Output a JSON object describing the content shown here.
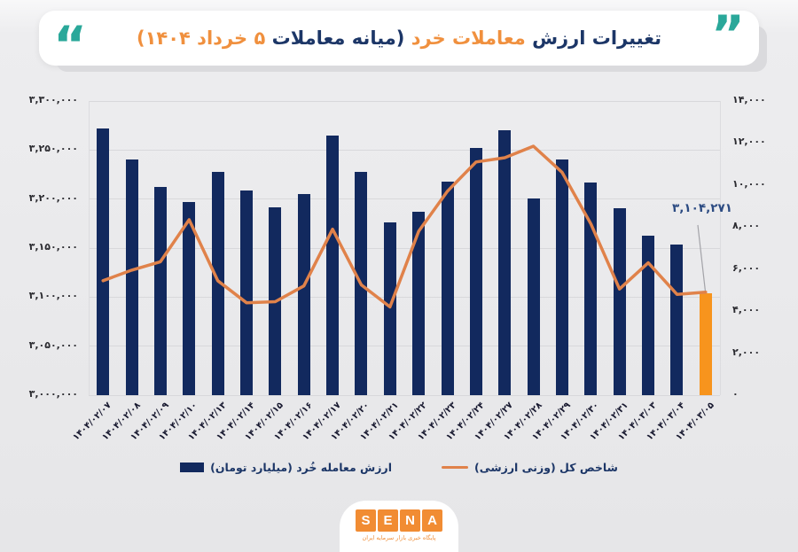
{
  "title": {
    "quote_left": "“",
    "quote_right": "”",
    "seg1": "تغییرات ارزش",
    "seg2": "معاملات خرد",
    "seg3": "(میانه معاملات",
    "seg4": "۵ خرداد ۱۴۰۴)"
  },
  "chart_data": {
    "type": "bar+line combo, dual axis",
    "categories": [
      "۱۴۰۴/۰۲/۰۷",
      "۱۴۰۴/۰۲/۰۸",
      "۱۴۰۴/۰۲/۰۹",
      "۱۴۰۴/۰۲/۱۰",
      "۱۴۰۴/۰۲/۱۳",
      "۱۴۰۴/۰۲/۱۴",
      "۱۴۰۴/۰۲/۱۵",
      "۱۴۰۴/۰۲/۱۶",
      "۱۴۰۴/۰۲/۱۷",
      "۱۴۰۴/۰۲/۲۰",
      "۱۴۰۴/۰۲/۲۱",
      "۱۴۰۴/۰۲/۲۲",
      "۱۴۰۴/۰۲/۲۳",
      "۱۴۰۴/۰۲/۲۴",
      "۱۴۰۴/۰۲/۲۷",
      "۱۴۰۴/۰۲/۲۸",
      "۱۴۰۴/۰۲/۲۹",
      "۱۴۰۴/۰۲/۳۰",
      "۱۴۰۴/۰۲/۳۱",
      "۱۴۰۴/۰۳/۰۳",
      "۱۴۰۴/۰۳/۰۴",
      "۱۴۰۴/۰۳/۰۵"
    ],
    "series": [
      {
        "name": "ارزش معامله خُرد (میلیارد تومان)",
        "type": "bar",
        "axis": "left",
        "color": "#12295e",
        "last_bar_color": "#f7941d",
        "values": [
          3272000,
          3240000,
          3212000,
          3197000,
          3228000,
          3209000,
          3192000,
          3205000,
          3265000,
          3228000,
          3176000,
          3187000,
          3218000,
          3252000,
          3270000,
          3201000,
          3240000,
          3217000,
          3191000,
          3163000,
          3154000,
          3104271
        ]
      },
      {
        "name": "شاخص کل (وزنی ارزشی)",
        "type": "line",
        "axis": "right",
        "color": "#e0824a",
        "values": [
          5450,
          5950,
          6350,
          8350,
          5450,
          4400,
          4450,
          5200,
          7900,
          5250,
          4200,
          7800,
          9700,
          11100,
          11300,
          11850,
          10600,
          8150,
          5050,
          6300,
          4800,
          4900
        ]
      }
    ],
    "left_axis": {
      "min": 3000000,
      "max": 3300000,
      "tick_values": [
        3000000,
        3050000,
        3100000,
        3150000,
        3200000,
        3250000,
        3300000
      ],
      "tick_labels": [
        "۳,۰۰۰,۰۰۰",
        "۳,۰۵۰,۰۰۰",
        "۳,۱۰۰,۰۰۰",
        "۳,۱۵۰,۰۰۰",
        "۳,۲۰۰,۰۰۰",
        "۳,۲۵۰,۰۰۰",
        "۳,۳۰۰,۰۰۰"
      ]
    },
    "right_axis": {
      "min": 0,
      "max": 14000,
      "tick_values": [
        0,
        2000,
        4000,
        6000,
        8000,
        10000,
        12000,
        14000
      ],
      "tick_labels": [
        "۰",
        "۲,۰۰۰",
        "۴,۰۰۰",
        "۶,۰۰۰",
        "۸,۰۰۰",
        "۱۰,۰۰۰",
        "۱۲,۰۰۰",
        "۱۴,۰۰۰"
      ]
    },
    "grid": "horizontal only",
    "legend_position": "bottom center",
    "annotation": {
      "label": "۳,۱۰۴,۲۷۱",
      "target_index": 21
    }
  },
  "colors": {
    "bar_navy": "#12295e",
    "bar_highlight_orange": "#f7941d",
    "line_orange": "#e0824a",
    "title_navy": "#1c3667",
    "title_orange": "#f0903e",
    "quote_teal": "#2aa89a",
    "logo_orange": "#f18c33"
  },
  "footer": {
    "logo_letters": [
      "S",
      "E",
      "N",
      "A"
    ],
    "tagline": "پایگاه خبری بازار سرمایه ایران"
  }
}
